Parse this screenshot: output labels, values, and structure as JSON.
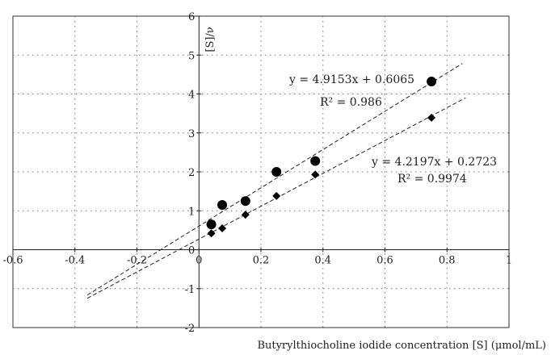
{
  "chart_data": {
    "type": "scatter",
    "xlabel": "Butyrylthiocholine iodide concentration [S] (μmol/mL)",
    "ylabel": "[S]/ν",
    "xlim": [
      -0.6,
      1.0
    ],
    "ylim": [
      -2,
      6
    ],
    "x_ticks": [
      -0.6,
      -0.4,
      -0.2,
      0,
      0.2,
      0.4,
      0.6,
      0.8,
      1
    ],
    "y_ticks": [
      -2,
      -1,
      0,
      1,
      2,
      3,
      4,
      5,
      6
    ],
    "x_tick_labels": [
      "-0.6",
      "-0.4",
      "-0.2",
      "0",
      "0.2",
      "0.4",
      "0.6",
      "0.8",
      "1"
    ],
    "y_tick_labels": [
      "-2",
      "-1",
      "0",
      "1",
      "2",
      "3",
      "4",
      "5",
      "6"
    ],
    "grid": true,
    "series": [
      {
        "marker": "circle",
        "x": [
          0.04,
          0.075,
          0.15,
          0.25,
          0.375,
          0.75
        ],
        "y": [
          0.65,
          1.15,
          1.25,
          2.0,
          2.28,
          4.32
        ],
        "fit": {
          "slope": 4.9153,
          "intercept": 0.6065,
          "x_range": [
            -0.36,
            0.85
          ]
        },
        "equation": "y = 4.9153x + 0.6065",
        "r2": "R² = 0.986"
      },
      {
        "marker": "diamond",
        "x": [
          0.04,
          0.075,
          0.15,
          0.25,
          0.375,
          0.75
        ],
        "y": [
          0.42,
          0.55,
          0.9,
          1.38,
          1.93,
          3.39
        ],
        "fit": {
          "slope": 4.2197,
          "intercept": 0.2723,
          "x_range": [
            -0.36,
            0.86
          ]
        },
        "equation": "y = 4.2197x + 0.2723",
        "r2": "R² = 0.9974"
      }
    ]
  }
}
